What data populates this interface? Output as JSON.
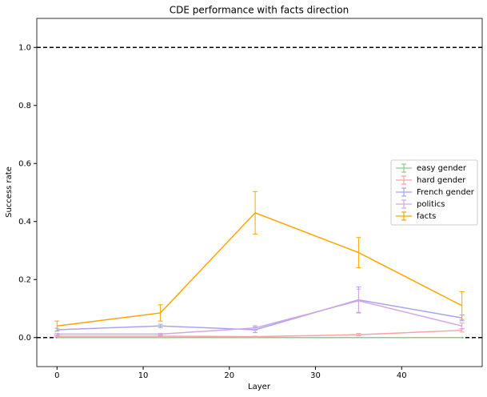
{
  "chart_data": {
    "type": "line",
    "title": "CDE performance with facts direction",
    "xlabel": "Layer",
    "ylabel": "Success rate",
    "x": [
      0,
      12,
      23,
      35,
      47
    ],
    "series": [
      {
        "name": "easy gender",
        "color": "#8fc98f",
        "values": [
          0,
          0,
          0,
          0,
          0
        ],
        "errors": [
          0,
          0,
          0,
          0,
          0
        ]
      },
      {
        "name": "hard gender",
        "color": "#f5a3a3",
        "values": [
          0.005,
          0.005,
          0.003,
          0.01,
          0.025
        ],
        "errors": [
          0.002,
          0.003,
          0.002,
          0.004,
          0.006
        ]
      },
      {
        "name": "French gender",
        "color": "#a9a3f0",
        "values": [
          0.027,
          0.04,
          0.027,
          0.13,
          0.068
        ],
        "errors": [
          0.005,
          0.006,
          0.01,
          0.045,
          0.01
        ]
      },
      {
        "name": "politics",
        "color": "#d4a6e3",
        "values": [
          0.012,
          0.012,
          0.033,
          0.127,
          0.04
        ],
        "errors": [
          0.003,
          0.003,
          0.008,
          0.04,
          0.01
        ]
      },
      {
        "name": "facts",
        "color": "#ffa500",
        "values": [
          0.04,
          0.085,
          0.43,
          0.293,
          0.11
        ],
        "errors": [
          0.017,
          0.028,
          0.073,
          0.052,
          0.048
        ]
      }
    ],
    "hlines": [
      0,
      1
    ],
    "xlim": [
      -2.35,
      49.35
    ],
    "xticks": [
      0,
      10,
      20,
      30,
      40
    ],
    "ylim": [
      -0.1,
      1.1
    ],
    "yticks": [
      {
        "value": 0,
        "label": "0.0"
      },
      0.2,
      0.4,
      0.6,
      0.8,
      {
        "value": 1,
        "label": "1.0"
      }
    ],
    "legend": "center right"
  }
}
